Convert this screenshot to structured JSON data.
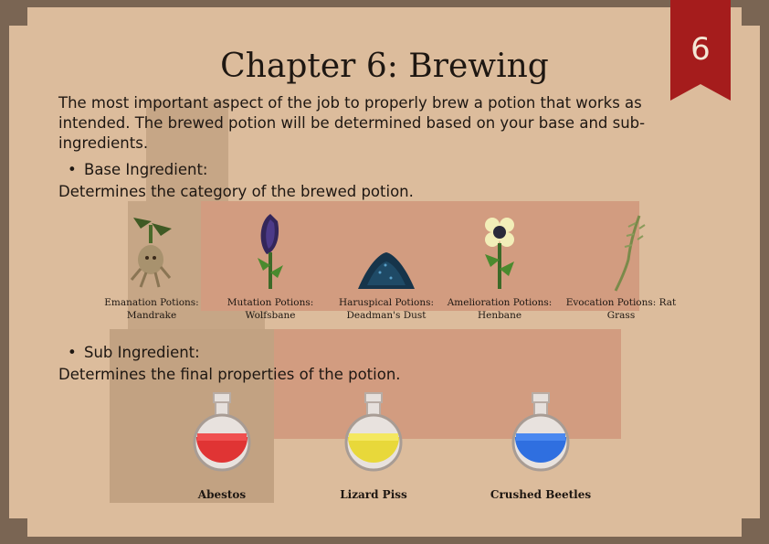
{
  "bookmark": {
    "page_number": "6",
    "color": "#a51c1c"
  },
  "title": "Chapter 6: Brewing",
  "intro": "The most important aspect of the job to properly brew a potion that works as intended. The brewed potion will be determined based on your base and sub-ingredients.",
  "base": {
    "heading": "Base Ingredient:",
    "description": "Determines the category of the brewed potion.",
    "items": [
      {
        "label": "Emanation Potions: Mandrake",
        "icon": "mandrake-icon"
      },
      {
        "label": "Mutation Potions: Wolfsbane",
        "icon": "wolfsbane-icon"
      },
      {
        "label": "Haruspical Potions: Deadman's Dust",
        "icon": "dust-pile-icon"
      },
      {
        "label": "Amelioration Potions: Henbane",
        "icon": "henbane-icon"
      },
      {
        "label": "Evocation Potions: Rat Grass",
        "icon": "rat-grass-icon"
      }
    ]
  },
  "sub": {
    "heading": "Sub Ingredient:",
    "description": "Determines the final properties of the potion.",
    "items": [
      {
        "label": "Abestos",
        "color": "#e03434"
      },
      {
        "label": "Lizard Piss",
        "color": "#e8d83a"
      },
      {
        "label": "Crushed Beetles",
        "color": "#2f6fe0"
      }
    ]
  },
  "colors": {
    "page": "#dcbc9c",
    "border": "#7a6553",
    "text": "#1e1712"
  }
}
